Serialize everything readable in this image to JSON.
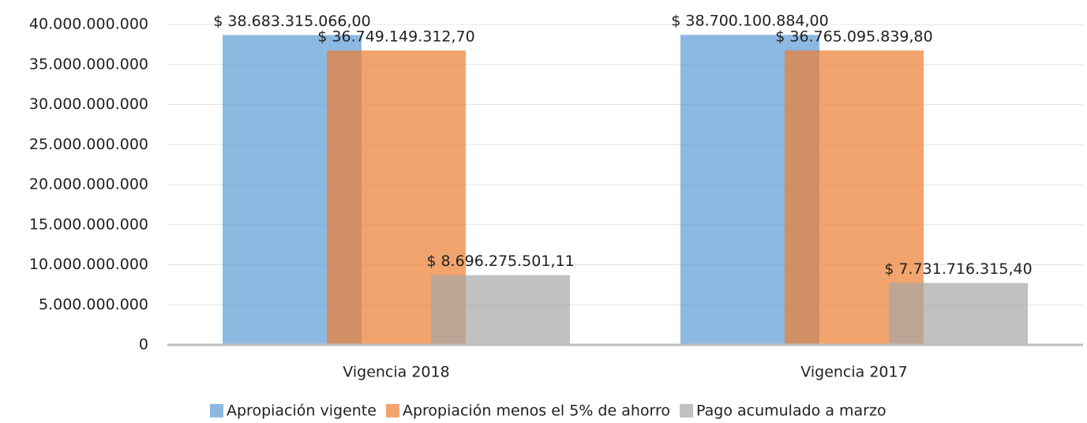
{
  "chart_data": {
    "type": "bar",
    "categories": [
      "Vigencia 2018",
      "Vigencia 2017"
    ],
    "series": [
      {
        "name": "Apropiación vigente",
        "color": "#5b9bd5",
        "values": [
          38683315066.0,
          38700100884.0
        ],
        "value_labels": [
          "$ 38.683.315.066,00",
          "$ 38.700.100.884,00"
        ]
      },
      {
        "name": "Apropiación menos el 5% de ahorro",
        "color": "#ed7d31",
        "values": [
          36749149312.7,
          36765095839.8
        ],
        "value_labels": [
          "$ 36.749.149.312,70",
          "$ 36.765.095.839,80"
        ]
      },
      {
        "name": "Pago acumulado a marzo",
        "color": "#a5a5a5",
        "values": [
          8696275501.11,
          7731716315.4
        ],
        "value_labels": [
          "$ 8.696.275.501,11",
          "$ 7.731.716.315,40"
        ]
      }
    ],
    "ylim": [
      0,
      40000000000
    ],
    "yticks": [
      0,
      {
        "value": 5000000000,
        "label": "5.000.000.000"
      },
      {
        "value": 10000000000,
        "label": "10.000.000.000"
      },
      {
        "value": 15000000000,
        "label": "15.000.000.000"
      },
      {
        "value": 20000000000,
        "label": "20.000.000.000"
      },
      {
        "value": 25000000000,
        "label": "25.000.000.000"
      },
      {
        "value": 30000000000,
        "label": "30.000.000.000"
      },
      {
        "value": 35000000000,
        "label": "35.000.000.000"
      },
      {
        "value": 40000000000,
        "label": "40.000.000.000"
      }
    ],
    "grid": true,
    "legend": "bottom"
  }
}
